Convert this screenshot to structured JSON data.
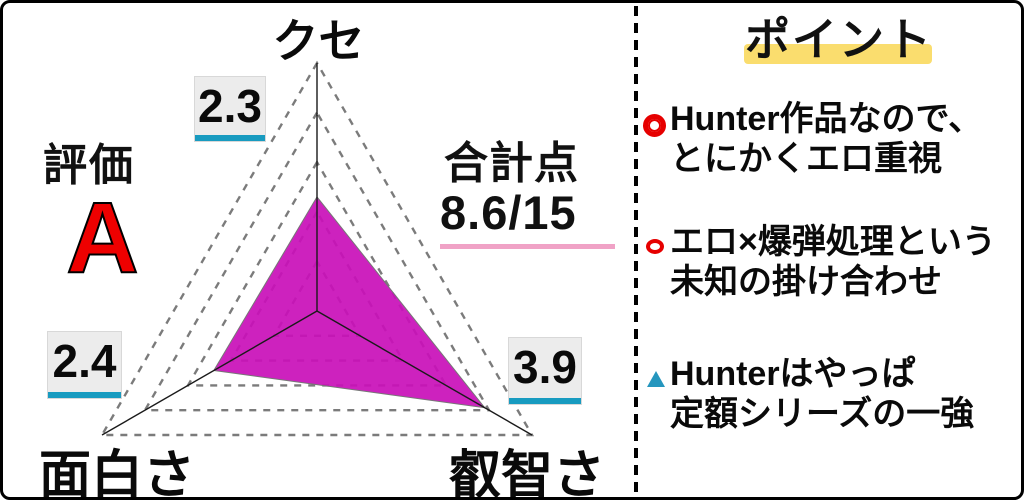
{
  "chart_data": {
    "type": "radar",
    "categories": [
      "クセ",
      "面白さ",
      "叡智さ"
    ],
    "values": [
      2.3,
      2.4,
      3.9
    ],
    "max": 5,
    "grid_levels": 5,
    "grid_style": "dashed",
    "annotations": {
      "rating_label": "評価",
      "rating_value": "A",
      "total_label": "合計点",
      "total_value": "8.6/15"
    }
  },
  "points_panel": {
    "title": "ポイント",
    "bullets": [
      {
        "icon": "double-circle-icon",
        "lines": [
          "Hunter作品なので、",
          "とにかくエロ重視"
        ]
      },
      {
        "icon": "circle-outline-icon",
        "lines": [
          "エロ×爆弾処理という",
          "未知の掛け合わせ"
        ]
      },
      {
        "icon": "triangle-icon",
        "lines": [
          "Hunterはやっぱ",
          "定額シリーズの一強"
        ]
      }
    ]
  },
  "colors": {
    "fill": "#c90fb8",
    "grid": "#7b7b7b",
    "axis": "#1a1a1a",
    "value_underline": "#189bc0",
    "total_underline": "#f0a2c6",
    "title_highlight": "#fadd6e",
    "rating": "#ee0000",
    "bullet_red": "#e60000",
    "bullet_teal": "#2596be"
  }
}
